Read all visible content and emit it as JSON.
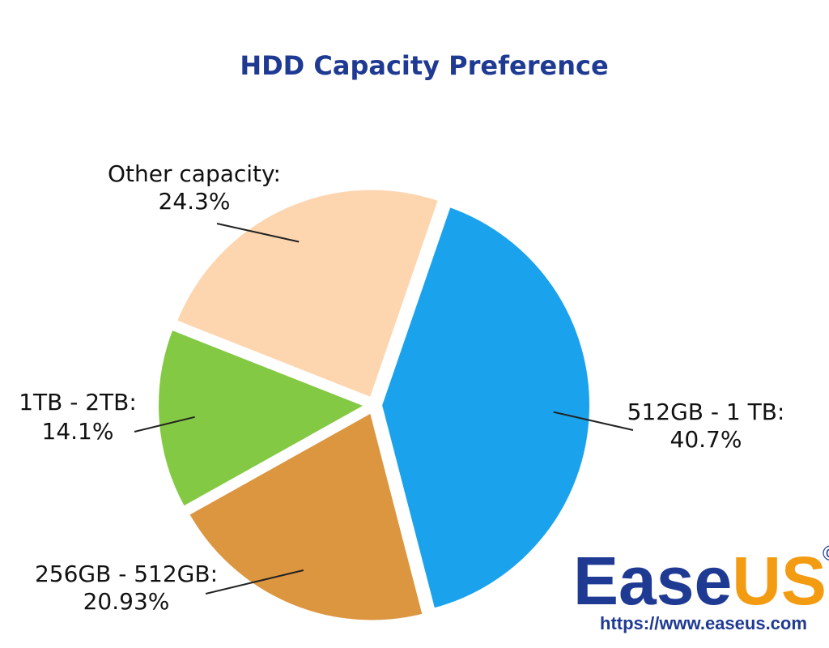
{
  "chart_data": {
    "type": "pie",
    "title": "HDD Capacity Preference",
    "slices": [
      {
        "label": "512GB - 1 TB:",
        "value": 40.7,
        "display": "40.7%",
        "color": "#1aa3ec"
      },
      {
        "label": "256GB - 512GB:",
        "value": 20.93,
        "display": "20.93%",
        "color": "#dc963f"
      },
      {
        "label": "1TB - 2TB:",
        "value": 14.1,
        "display": "14.1%",
        "color": "#84c944"
      },
      {
        "label": "Other capacity:",
        "value": 24.3,
        "display": "24.3%",
        "color": "#fdd6b0"
      }
    ],
    "start_direction": "top-right, clockwise",
    "legend": "none"
  },
  "watermark": {
    "brand_ease": "Ease",
    "brand_us": "US",
    "mark": "©",
    "url": "https://www.easeus.com",
    "colors": {
      "ease": "#1f3a93",
      "us": "#f39c12"
    }
  }
}
